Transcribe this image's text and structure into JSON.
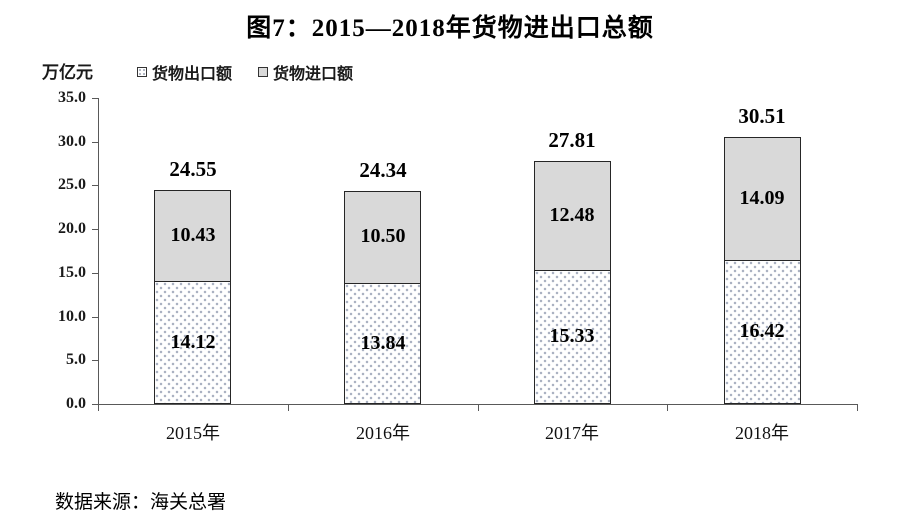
{
  "title": "图7：2015—2018年货物进出口总额",
  "axis_unit": "万亿元",
  "legend": [
    {
      "label": "货物出口额"
    },
    {
      "label": "货物进口额"
    }
  ],
  "source": "数据来源：海关总署",
  "colors": {
    "import_fill": "#d9d9d9",
    "export_fill": "#ffffff",
    "export_dot": "#a8afc0",
    "bar_border": "#262626",
    "axis": "#595959",
    "text": "#000000"
  },
  "chart_data": {
    "type": "bar",
    "stacked": true,
    "categories": [
      "2015年",
      "2016年",
      "2017年",
      "2018年"
    ],
    "series": [
      {
        "name": "货物出口额",
        "values": [
          14.12,
          13.84,
          15.33,
          16.42
        ]
      },
      {
        "name": "货物进口额",
        "values": [
          10.43,
          10.5,
          12.48,
          14.09
        ]
      }
    ],
    "totals": [
      24.55,
      24.34,
      27.81,
      30.51
    ],
    "title": "图7：2015—2018年货物进出口总额",
    "xlabel": "",
    "ylabel": "万亿元",
    "ylim": [
      0,
      35
    ],
    "ytick_step": 5,
    "yticks": [
      "0.0",
      "5.0",
      "10.0",
      "15.0",
      "20.0",
      "25.0",
      "30.0",
      "35.0"
    ],
    "grid": false,
    "legend_position": "top-left",
    "value_labels": "inside-and-total"
  }
}
